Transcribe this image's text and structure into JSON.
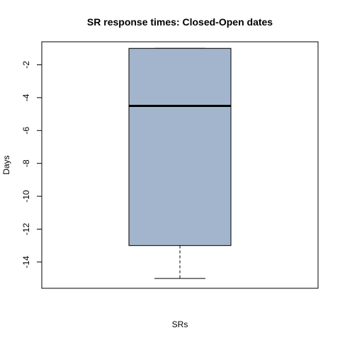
{
  "chart_data": {
    "type": "boxplot",
    "title": "SR response times: Closed-Open dates",
    "xlabel": "SRs",
    "ylabel": "Days",
    "ylim": [
      -15.6,
      -0.6
    ],
    "yticks": [
      -2,
      -4,
      -6,
      -8,
      -10,
      -12,
      -14
    ],
    "ytick_labels": [
      "-2",
      "-4",
      "-6",
      "-8",
      "-10",
      "-12",
      "-14"
    ],
    "box": {
      "whisker_low": -15,
      "q1": -13,
      "median": -4.5,
      "q3": -1,
      "whisker_high": -1
    },
    "colors": {
      "box_fill": "#a2b5cd",
      "stroke": "#000000"
    },
    "grid": false
  }
}
